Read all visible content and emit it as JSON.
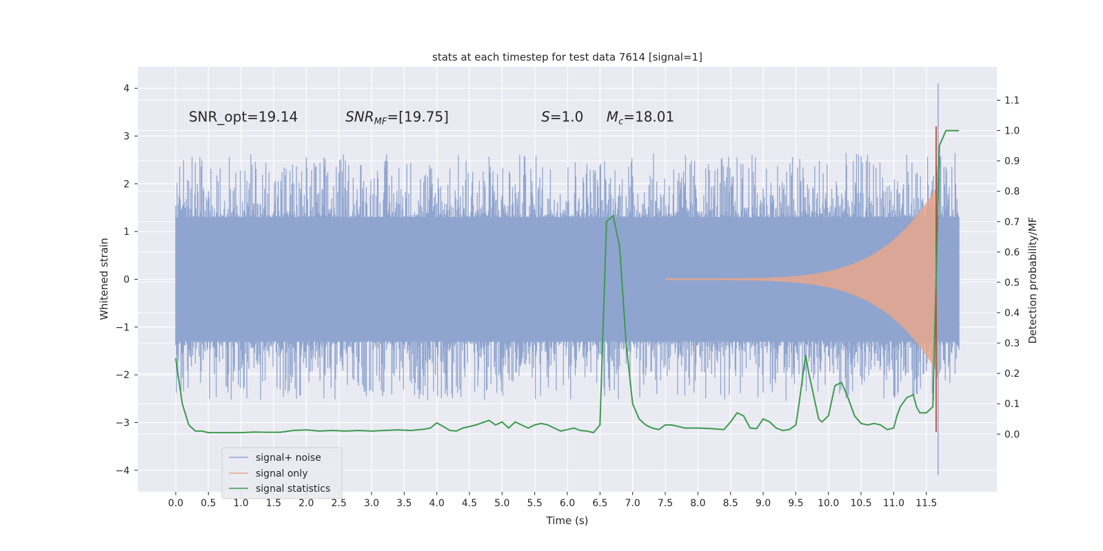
{
  "chart_data": {
    "type": "line",
    "title": "stats at each timestep for test data 7614 [signal=1]",
    "xlabel": "Time (s)",
    "ylabel": "Whitened strain",
    "ylabel_right": "Detection probability/MF",
    "xlim": [
      -0.58,
      12.58
    ],
    "ylim": [
      -4.45,
      4.45
    ],
    "ylim_right": [
      -0.19,
      1.21
    ],
    "x_ticks": [
      "0.0",
      "0.5",
      "1.0",
      "1.5",
      "2.0",
      "2.5",
      "3.0",
      "3.5",
      "4.0",
      "4.5",
      "5.0",
      "5.5",
      "6.0",
      "6.5",
      "7.0",
      "7.5",
      "8.0",
      "8.5",
      "9.0",
      "9.5",
      "10.0",
      "10.5",
      "11.0",
      "11.5"
    ],
    "y_ticks": [
      "4",
      "3",
      "2",
      "1",
      "0",
      "−1",
      "−2",
      "−3",
      "−4"
    ],
    "y_right_ticks": [
      "1.1",
      "1.0",
      "0.9",
      "0.8",
      "0.7",
      "0.6",
      "0.5",
      "0.4",
      "0.3",
      "0.2",
      "0.1",
      "0.0"
    ],
    "grid": true,
    "legend_position": "lower-left",
    "annotations": [
      {
        "text": "SNR_opt=19.14",
        "x": 0.2,
        "y": 3.3
      },
      {
        "text": "SNR_MF=[19.75]",
        "x": 2.6,
        "y": 3.3
      },
      {
        "text": "S=1.0",
        "x": 5.6,
        "y": 3.3
      },
      {
        "text": "M_c=18.01",
        "x": 6.6,
        "y": 3.3
      }
    ],
    "series": [
      {
        "name": "signal+ noise",
        "color": "#8fa5cf",
        "axis": "left",
        "t_range": [
          0.0,
          12.0
        ],
        "typical_range": [
          -1.3,
          1.3
        ],
        "peaks": [
          4.1,
          -4.1
        ]
      },
      {
        "name": "signal only",
        "color": "#e8a68c",
        "axis": "left",
        "t_range": [
          7.5,
          11.65
        ],
        "envelope_end": 1.9
      },
      {
        "name": "signal statistics",
        "color": "#3c9a4c",
        "axis": "right",
        "x": [
          0.0,
          0.1,
          0.2,
          0.3,
          0.4,
          0.5,
          0.6,
          0.7,
          0.8,
          0.9,
          1.0,
          1.2,
          1.4,
          1.6,
          1.8,
          2.0,
          2.2,
          2.4,
          2.6,
          2.8,
          3.0,
          3.2,
          3.4,
          3.6,
          3.8,
          3.9,
          4.0,
          4.1,
          4.2,
          4.3,
          4.4,
          4.6,
          4.8,
          4.9,
          5.0,
          5.1,
          5.2,
          5.3,
          5.4,
          5.5,
          5.6,
          5.7,
          5.8,
          5.9,
          6.0,
          6.1,
          6.2,
          6.3,
          6.4,
          6.5,
          6.6,
          6.7,
          6.8,
          6.9,
          7.0,
          7.1,
          7.2,
          7.3,
          7.4,
          7.5,
          7.6,
          7.7,
          7.8,
          8.0,
          8.2,
          8.4,
          8.5,
          8.6,
          8.7,
          8.8,
          8.9,
          9.0,
          9.1,
          9.2,
          9.3,
          9.4,
          9.5,
          9.55,
          9.65,
          9.7,
          9.75,
          9.8,
          9.85,
          9.9,
          10.0,
          10.1,
          10.2,
          10.3,
          10.4,
          10.5,
          10.6,
          10.7,
          10.8,
          10.9,
          11.0,
          11.05,
          11.1,
          11.2,
          11.3,
          11.35,
          11.4,
          11.5,
          11.6,
          11.7,
          11.8,
          11.9,
          12.0
        ],
        "values": [
          0.25,
          0.1,
          0.03,
          0.01,
          0.01,
          0.005,
          0.005,
          0.005,
          0.005,
          0.005,
          0.005,
          0.007,
          0.006,
          0.006,
          0.012,
          0.014,
          0.01,
          0.012,
          0.01,
          0.012,
          0.01,
          0.012,
          0.014,
          0.012,
          0.016,
          0.02,
          0.037,
          0.025,
          0.012,
          0.01,
          0.02,
          0.03,
          0.045,
          0.03,
          0.04,
          0.02,
          0.04,
          0.03,
          0.02,
          0.03,
          0.035,
          0.03,
          0.02,
          0.01,
          0.015,
          0.02,
          0.012,
          0.01,
          0.005,
          0.03,
          0.7,
          0.72,
          0.62,
          0.3,
          0.1,
          0.05,
          0.03,
          0.02,
          0.015,
          0.03,
          0.03,
          0.025,
          0.02,
          0.02,
          0.018,
          0.015,
          0.04,
          0.07,
          0.06,
          0.02,
          0.018,
          0.05,
          0.04,
          0.02,
          0.012,
          0.015,
          0.03,
          0.1,
          0.26,
          0.2,
          0.15,
          0.1,
          0.05,
          0.04,
          0.06,
          0.16,
          0.17,
          0.12,
          0.06,
          0.035,
          0.03,
          0.035,
          0.03,
          0.015,
          0.02,
          0.06,
          0.09,
          0.12,
          0.13,
          0.09,
          0.07,
          0.07,
          0.09,
          0.95,
          1.0,
          1.0,
          1.0
        ]
      }
    ]
  }
}
